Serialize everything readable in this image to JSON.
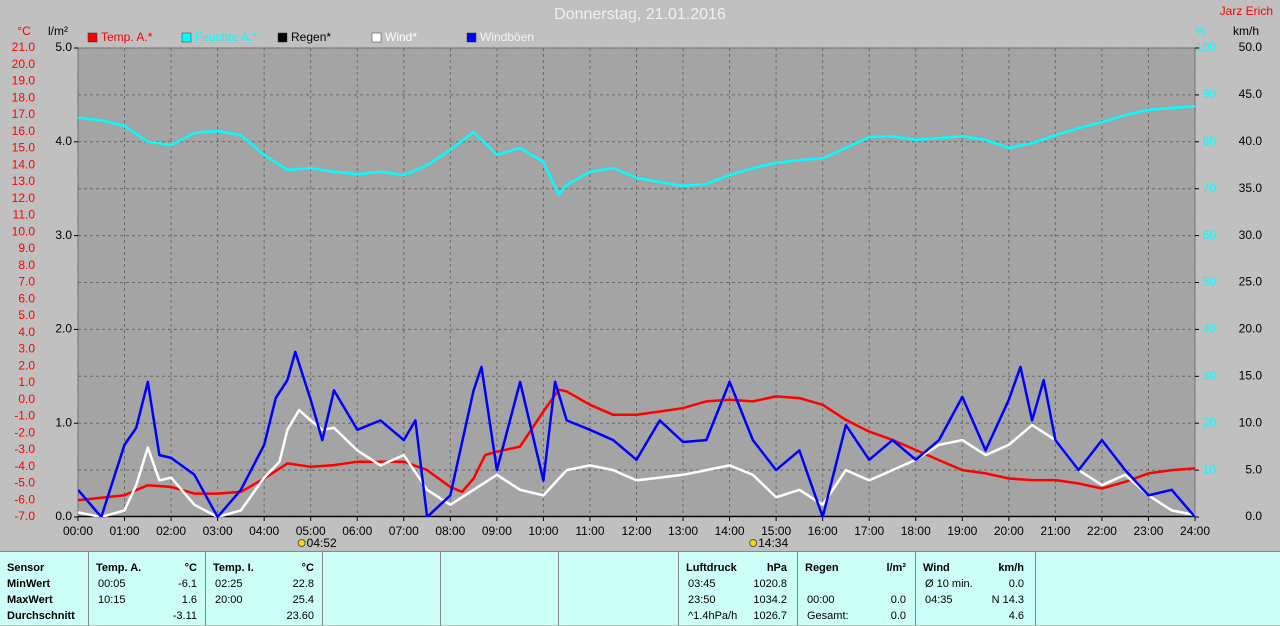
{
  "chart_data": {
    "type": "line",
    "title": "Donnerstag, 21.01.2016",
    "author": "Jarz Erich",
    "y_label": "°C",
    "y2_label": "l/m²",
    "y3_label": "%",
    "y4_label": "km/h",
    "axis_colors": {
      "y": "#ff0000",
      "y2": "#000000",
      "y3": "#00ffff",
      "y4": "#000000"
    },
    "grid": true,
    "xlim": [
      0,
      24
    ],
    "xticks": [
      {
        "value": 0,
        "label": "00:00"
      },
      {
        "value": 1,
        "label": "01:00"
      },
      {
        "value": 2,
        "label": "02:00"
      },
      {
        "value": 3,
        "label": "03:00"
      },
      {
        "value": 4,
        "label": "04:00"
      },
      {
        "value": 5,
        "label": "05:00"
      },
      {
        "value": 6,
        "label": "06:00"
      },
      {
        "value": 7,
        "label": "07:00"
      },
      {
        "value": 8,
        "label": "08:00"
      },
      {
        "value": 9,
        "label": "09:00"
      },
      {
        "value": 10,
        "label": "10:00"
      },
      {
        "value": 11,
        "label": "11:00"
      },
      {
        "value": 12,
        "label": "12:00"
      },
      {
        "value": 13,
        "label": "13:00"
      },
      {
        "value": 14,
        "label": "14:00"
      },
      {
        "value": 15,
        "label": "15:00"
      },
      {
        "value": 16,
        "label": "16:00"
      },
      {
        "value": 17,
        "label": "17:00"
      },
      {
        "value": 18,
        "label": "18:00"
      },
      {
        "value": 19,
        "label": "19:00"
      },
      {
        "value": 20,
        "label": "20:00"
      },
      {
        "value": 21,
        "label": "21:00"
      },
      {
        "value": 22,
        "label": "22:00"
      },
      {
        "value": 23,
        "label": "23:00"
      },
      {
        "value": 24,
        "label": "24:00"
      }
    ],
    "ylim": [
      -7,
      21
    ],
    "yticks": [
      {
        "value": -7,
        "label": "-7.0"
      },
      {
        "value": -6,
        "label": "-6.0"
      },
      {
        "value": -5,
        "label": "-5.0"
      },
      {
        "value": -4,
        "label": "-4.0"
      },
      {
        "value": -3,
        "label": "-3.0"
      },
      {
        "value": -2,
        "label": "-2.0"
      },
      {
        "value": -1,
        "label": "-1.0"
      },
      {
        "value": 0,
        "label": "0.0"
      },
      {
        "value": 1,
        "label": "1.0"
      },
      {
        "value": 2,
        "label": "2.0"
      },
      {
        "value": 3,
        "label": "3.0"
      },
      {
        "value": 4,
        "label": "4.0"
      },
      {
        "value": 5,
        "label": "5.0"
      },
      {
        "value": 6,
        "label": "6.0"
      },
      {
        "value": 7,
        "label": "7.0"
      },
      {
        "value": 8,
        "label": "8.0"
      },
      {
        "value": 9,
        "label": "9.0"
      },
      {
        "value": 10,
        "label": "10.0"
      },
      {
        "value": 11,
        "label": "11.0"
      },
      {
        "value": 12,
        "label": "12.0"
      },
      {
        "value": 13,
        "label": "13.0"
      },
      {
        "value": 14,
        "label": "14.0"
      },
      {
        "value": 15,
        "label": "15.0"
      },
      {
        "value": 16,
        "label": "16.0"
      },
      {
        "value": 17,
        "label": "17.0"
      },
      {
        "value": 18,
        "label": "18.0"
      },
      {
        "value": 19,
        "label": "19.0"
      },
      {
        "value": 20,
        "label": "20.0"
      },
      {
        "value": 21,
        "label": "21.0"
      }
    ],
    "y2lim": [
      0,
      5
    ],
    "y2ticks": [
      {
        "value": 0,
        "label": "0.0"
      },
      {
        "value": 1,
        "label": "1.0"
      },
      {
        "value": 2,
        "label": "2.0"
      },
      {
        "value": 3,
        "label": "3.0"
      },
      {
        "value": 4,
        "label": "4.0"
      },
      {
        "value": 5,
        "label": "5.0"
      }
    ],
    "y3lim": [
      0,
      100
    ],
    "y3ticks": [
      10,
      20,
      30,
      40,
      50,
      60,
      70,
      80,
      90,
      100
    ],
    "y4lim": [
      0,
      50
    ],
    "y4ticks": [
      {
        "value": 0,
        "label": "0.0"
      },
      {
        "value": 5,
        "label": "5.0"
      },
      {
        "value": 10,
        "label": "10.0"
      },
      {
        "value": 15,
        "label": "15.0"
      },
      {
        "value": 20,
        "label": "20.0"
      },
      {
        "value": 25,
        "label": "25.0"
      },
      {
        "value": 30,
        "label": "30.0"
      },
      {
        "value": 35,
        "label": "35.0"
      },
      {
        "value": 40,
        "label": "40.0"
      },
      {
        "value": 45,
        "label": "45.0"
      },
      {
        "value": 50,
        "label": "50.0"
      }
    ],
    "annotations": [
      {
        "x": 4.87,
        "label": "04:52"
      },
      {
        "x": 14.57,
        "label": "14:34"
      }
    ],
    "series": [
      {
        "name": "Temp. A.*",
        "color": "#ff0000",
        "axis": "y",
        "x": [
          0,
          1,
          1.5,
          2,
          2.5,
          3,
          3.5,
          4,
          4.5,
          5,
          5.5,
          6,
          6.5,
          7,
          7.5,
          8,
          8.25,
          8.5,
          8.75,
          9,
          9.5,
          10,
          10.33,
          10.5,
          11,
          11.5,
          12,
          12.5,
          13,
          13.5,
          14,
          14.5,
          15,
          15.5,
          16,
          16.5,
          17,
          17.5,
          18,
          18.5,
          19,
          19.5,
          20,
          20.5,
          21,
          21.5,
          22,
          22.5,
          23,
          23.5,
          24
        ],
        "values": [
          -6.0,
          -5.7,
          -5.1,
          -5.2,
          -5.6,
          -5.6,
          -5.5,
          -4.7,
          -3.8,
          -4.0,
          -3.9,
          -3.7,
          -3.7,
          -3.7,
          -4.2,
          -5.2,
          -5.5,
          -4.7,
          -3.3,
          -3.1,
          -2.8,
          -0.7,
          0.6,
          0.5,
          -0.3,
          -0.9,
          -0.9,
          -0.7,
          -0.5,
          -0.1,
          0.0,
          -0.1,
          0.2,
          0.1,
          -0.3,
          -1.2,
          -1.9,
          -2.4,
          -3.0,
          -3.6,
          -4.2,
          -4.4,
          -4.7,
          -4.8,
          -4.8,
          -5.0,
          -5.3,
          -4.9,
          -4.4,
          -4.2,
          -4.1
        ]
      },
      {
        "name": "Feuchte A.*",
        "color": "#00ffff",
        "axis": "y3",
        "x": [
          0,
          0.5,
          1,
          1.5,
          2,
          2.5,
          3,
          3.5,
          4,
          4.5,
          5,
          5.5,
          6,
          6.5,
          7,
          7.5,
          8,
          8.5,
          9,
          9.5,
          10,
          10.33,
          10.5,
          11,
          11.5,
          12,
          12.5,
          13,
          13.5,
          14,
          14.5,
          15,
          15.5,
          16,
          16.5,
          17,
          17.5,
          18,
          18.5,
          19,
          19.5,
          20,
          20.5,
          21,
          21.5,
          22,
          22.5,
          23,
          23.5,
          24
        ],
        "values": [
          85.1,
          84.6,
          83.4,
          80,
          79.3,
          81.9,
          82.3,
          81.4,
          77.2,
          74,
          74.4,
          73.6,
          73.1,
          73.6,
          72.9,
          75,
          78.3,
          82.1,
          77.2,
          78.7,
          75.7,
          68.7,
          70.8,
          73.6,
          74.4,
          72.3,
          71.4,
          70.6,
          71,
          72.9,
          74.4,
          75.5,
          76.1,
          76.5,
          78.7,
          81,
          81.2,
          80.4,
          80.8,
          81.2,
          80.4,
          78.7,
          79.7,
          81.4,
          82.9,
          84.2,
          85.7,
          86.8,
          87.2,
          87.6
        ]
      },
      {
        "name": "Regen*",
        "color": "#000000",
        "axis": "y2",
        "x": [
          0,
          24
        ],
        "values": [
          0,
          0
        ]
      },
      {
        "name": "Wind*",
        "color": "#ffffff",
        "axis": "y4",
        "x": [
          0,
          0.5,
          1,
          1.25,
          1.5,
          1.75,
          2,
          2.5,
          3,
          3.5,
          4,
          4.33,
          4.5,
          4.75,
          5,
          5.25,
          5.5,
          6,
          6.5,
          7,
          7.5,
          8,
          8.5,
          9,
          9.5,
          10,
          10.5,
          11,
          11.5,
          12,
          12.5,
          13,
          13.5,
          14,
          14.5,
          15,
          15.5,
          16,
          16.5,
          17,
          17.5,
          18,
          18.5,
          19,
          19.5,
          20,
          20.5,
          21,
          21.5,
          22,
          22.5,
          23,
          23.5,
          24
        ],
        "values": [
          0.5,
          0,
          0.7,
          3.4,
          7.4,
          3.9,
          4.2,
          1.3,
          0,
          0.7,
          4.2,
          5.9,
          9.3,
          11.4,
          10.3,
          9.3,
          9.5,
          7.1,
          5.5,
          6.6,
          2.9,
          1.3,
          2.9,
          4.5,
          2.9,
          2.3,
          5.0,
          5.5,
          5.0,
          3.9,
          4.2,
          4.5,
          5.0,
          5.5,
          4.5,
          2.1,
          2.9,
          1.3,
          5.0,
          3.9,
          5.0,
          6.1,
          7.7,
          8.2,
          6.6,
          7.7,
          9.8,
          8.2,
          5.0,
          3.4,
          4.5,
          2.3,
          0.7,
          0.2
        ]
      },
      {
        "name": "Windböen",
        "color": "#0000ff",
        "axis": "y4",
        "x": [
          0,
          0.5,
          1,
          1.25,
          1.5,
          1.75,
          2,
          2.5,
          3,
          3.5,
          4,
          4.25,
          4.5,
          4.67,
          5,
          5.25,
          5.5,
          6,
          6.5,
          7,
          7.25,
          7.5,
          8,
          8.5,
          8.67,
          9,
          9.5,
          10,
          10.25,
          10.5,
          11,
          11.5,
          12,
          12.5,
          13,
          13.5,
          14,
          14.5,
          15,
          15.5,
          16,
          16.5,
          17,
          17.5,
          18,
          18.5,
          19,
          19.5,
          20,
          20.25,
          20.5,
          20.75,
          21,
          21.5,
          22,
          22.5,
          23,
          23.5,
          24
        ],
        "values": [
          2.9,
          0,
          7.7,
          9.5,
          14.4,
          6.6,
          6.3,
          4.5,
          0,
          2.9,
          7.7,
          12.7,
          14.6,
          17.6,
          12.5,
          8.2,
          13.5,
          9.3,
          10.3,
          8.2,
          10.3,
          0,
          2.3,
          13.5,
          16,
          5.0,
          14.4,
          3.9,
          14.4,
          10.3,
          9.3,
          8.2,
          6.1,
          10.3,
          8.0,
          8.2,
          14.4,
          8.2,
          5.0,
          7.1,
          0,
          9.8,
          6.1,
          8.2,
          6.1,
          8.2,
          12.8,
          7.1,
          12.5,
          16,
          10.3,
          14.6,
          8.2,
          5.0,
          8.2,
          5.0,
          2.3,
          2.9,
          0
        ]
      }
    ]
  },
  "stats": [
    {
      "header": {
        "name": "Sensor"
      },
      "rows": [
        {
          "time": "MinWert"
        },
        {
          "time": "MaxWert"
        },
        {
          "time": "Durchschnitt"
        }
      ]
    },
    {
      "header": {
        "name": "Temp. A.",
        "unit": "°C"
      },
      "rows": [
        {
          "time": "00:05",
          "value": "-6.1"
        },
        {
          "time": "10:15",
          "value": "1.6"
        },
        {
          "value": "-3.11"
        }
      ]
    },
    {
      "header": {
        "name": "Temp. I.",
        "unit": "°C"
      },
      "rows": [
        {
          "time": "02:25",
          "value": "22.8"
        },
        {
          "time": "20:00",
          "value": "25.4"
        },
        {
          "value": "23.60"
        }
      ]
    },
    {
      "header": {
        "name": "Luftdruck",
        "unit": "hPa"
      },
      "rows": [
        {
          "time": "03:45",
          "value": "1020.8"
        },
        {
          "time": "23:50",
          "value": "1034.2"
        },
        {
          "time": "^1.4hPa/h",
          "value": "1026.7"
        }
      ]
    },
    {
      "header": {
        "name": "Regen",
        "unit": "l/m²"
      },
      "rows": [
        null,
        {
          "time": "00:00",
          "value": "0.0"
        },
        {
          "time": "Gesamt:",
          "value": "0.0"
        }
      ]
    },
    {
      "header": {
        "name": "Wind",
        "unit": "km/h"
      },
      "rows": [
        {
          "time": "Ø 10 min.",
          "value": "0.0"
        },
        {
          "time": "04:35",
          "value": "N 14.3"
        },
        {
          "value": "4.6"
        }
      ]
    }
  ]
}
